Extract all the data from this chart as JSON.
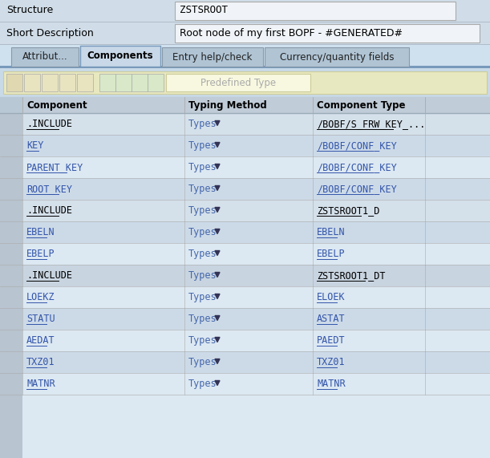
{
  "bg_color": "#cfe0ef",
  "header_bg": "#d8e8f4",
  "white": "#ffffff",
  "field_border": "#aaaaaa",
  "tab_active_bg": "#c8d8e8",
  "tab_inactive_bg": "#b8ccd8",
  "tab_border": "#8899aa",
  "toolbar_bg": "#e8e8c8",
  "toolbar_border": "#bbbbaa",
  "grid_header_bg": "#c8d4dc",
  "grid_row_even": "#dce8f0",
  "grid_row_odd": "#ccdae8",
  "row_num_bg": "#c0ccd8",
  "link_color": "#3355aa",
  "dark_text": "#000000",
  "gray_text": "#666655",
  "include_text": "#000000",
  "type_text": "#556677",
  "structure_label": "Structure",
  "structure_value": "ZSTSROOT",
  "desc_label": "Short Description",
  "desc_value": "Root node of my first BOPF - #GENERATED#",
  "tabs": [
    "Attribut...",
    "Components",
    "Entry help/check",
    "Currency/quantity fields"
  ],
  "active_tab": 1,
  "col_headers": [
    "Component",
    "Typing Method",
    "Component Type"
  ],
  "row_data": [
    [
      ".INCLUDE",
      "Types",
      "/BOBF/S_FRW_KEY_..."
    ],
    [
      "KEY",
      "Types",
      "/BOBF/CONF_KEY"
    ],
    [
      "PARENT_KEY",
      "Types",
      "/BOBF/CONF_KEY"
    ],
    [
      "ROOT_KEY",
      "Types",
      "/BOBF/CONF_KEY"
    ],
    [
      ".INCLUDE",
      "Types",
      "ZSTSROOT1_D"
    ],
    [
      "EBELN",
      "Types",
      "EBELN"
    ],
    [
      "EBELP",
      "Types",
      "EBELP"
    ],
    [
      ".INCLUDE",
      "Types",
      "ZSTSROOT1_DT"
    ],
    [
      "LOEKZ",
      "Types",
      "ELOEK"
    ],
    [
      "STATU",
      "Types",
      "ASTAT"
    ],
    [
      "AEDAT",
      "Types",
      "PAEDT"
    ],
    [
      "TXZ01",
      "Types",
      "TXZ01"
    ],
    [
      "MATNR",
      "Types",
      "MATNR"
    ]
  ],
  "row_is_include": [
    true,
    false,
    false,
    false,
    true,
    false,
    false,
    true,
    false,
    false,
    false,
    false,
    false
  ],
  "row_col0_is_link": [
    false,
    true,
    true,
    true,
    false,
    true,
    true,
    false,
    true,
    true,
    true,
    true,
    true
  ],
  "row_col2_is_link": [
    true,
    true,
    true,
    true,
    true,
    true,
    true,
    true,
    true,
    true,
    true,
    true,
    true
  ],
  "predefined_label": "Predefined Type"
}
